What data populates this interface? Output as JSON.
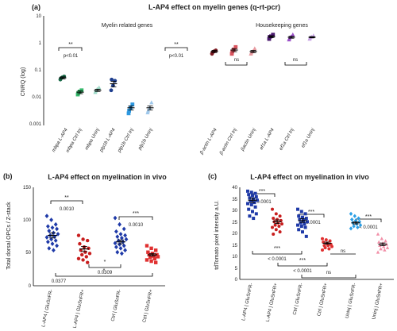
{
  "chart_data": [
    {
      "panel": "(a)",
      "type": "scatter",
      "title": "L-AP4 effect on myelin genes (q-rt-pcr)",
      "ylabel": "CNRQ (log)",
      "yscale": "log",
      "ylim": [
        0.001,
        10
      ],
      "yticks": [
        "0.001",
        "0.01",
        "0.1",
        "1",
        "10"
      ],
      "group_labels": [
        "Myelin related genes",
        "Housekeeping genes"
      ],
      "categories": [
        "mbpa L-AP4",
        "mbpa Ctrl Inj",
        "mbpa Uninj",
        "plp1b L-AP4",
        "plp1b Ctrl Inj",
        "plp1b Uninj",
        "β-actin L-AP4",
        "β-actin Ctrl Inj",
        "βactin Uninj",
        "ef1a L-AP4",
        "ef1a Ctrl Inj",
        "ef1a Uninj"
      ],
      "colors": [
        "#1b6b4a",
        "#34b86a",
        "#9dd9c6",
        "#1f3f8f",
        "#2e98e0",
        "#9ec7ea",
        "#7a1820",
        "#d9545e",
        "#e79aa0",
        "#4a1a6e",
        "#9b4fc9",
        "#c9a5e6"
      ],
      "points": [
        [
          0.05,
          0.06,
          0.065,
          0.055
        ],
        [
          0.014,
          0.018,
          0.02,
          0.016
        ],
        [
          0.017,
          0.022,
          0.025,
          0.019
        ],
        [
          0.02,
          0.03,
          0.045,
          0.05
        ],
        [
          0.0028,
          0.0045,
          0.006,
          0.0035
        ],
        [
          0.003,
          0.0045,
          0.007,
          0.0035
        ],
        [
          0.45,
          0.55,
          0.6,
          0.5
        ],
        [
          0.45,
          0.65,
          0.8,
          0.55
        ],
        [
          0.45,
          0.55,
          0.7,
          0.5
        ],
        [
          1.6,
          2.0,
          2.3,
          1.9
        ],
        [
          1.5,
          1.9,
          2.3,
          1.7
        ],
        [
          1.6,
          1.9,
          2.1,
          1.8
        ]
      ],
      "means": [
        0.058,
        0.017,
        0.02,
        0.035,
        0.0045,
        0.0045,
        0.55,
        0.62,
        0.55,
        1.95,
        1.85,
        1.85
      ],
      "sems": [
        0.005,
        0.002,
        0.002,
        0.008,
        0.0008,
        0.0008,
        0.05,
        0.08,
        0.05,
        0.15,
        0.15,
        0.1
      ],
      "annotations": [
        "**",
        "p<0.01",
        "**",
        "p<0.01",
        "ns",
        "ns"
      ]
    },
    {
      "panel": "(b)",
      "type": "scatter",
      "title": "L-AP4 effect on myelination in vivo",
      "ylabel": "Total dorsal OPCs / Z-stack",
      "ylim": [
        0,
        150
      ],
      "yticks": [
        "0",
        "50",
        "100",
        "150"
      ],
      "categories": [
        "L-AP4 | GluSnFR-",
        "L-AP4 | GluSnFR+",
        "Ctrl | GluSnFR-",
        "Ctrl | GluSnFR+"
      ],
      "colors": [
        "#1f3aa8",
        "#c81e1e",
        "#1f3aa8",
        "#e03030"
      ],
      "points": [
        [
          108,
          102,
          95,
          92,
          90,
          88,
          85,
          82,
          80,
          78,
          76,
          75,
          72,
          70,
          68,
          65,
          62,
          58,
          55
        ],
        [
          78,
          72,
          70,
          65,
          60,
          58,
          55,
          52,
          50,
          48,
          45,
          42,
          40,
          36
        ],
        [
          105,
          95,
          88,
          84,
          80,
          78,
          76,
          74,
          72,
          70,
          68,
          66,
          64,
          62,
          60,
          58,
          55,
          52,
          50
        ],
        [
          62,
          58,
          55,
          52,
          50,
          48,
          48,
          46,
          45,
          44,
          42,
          40,
          38,
          36
        ]
      ],
      "means": [
        78,
        57,
        68,
        48
      ],
      "sems": [
        4,
        4,
        3,
        2
      ],
      "annotations": [
        "**",
        "0.0010",
        "***",
        "0.0010",
        "*",
        "*",
        "0.0377",
        "0.0309"
      ]
    },
    {
      "panel": "(c)",
      "type": "scatter",
      "title": "L-AP4 effect on myelination in vivo",
      "ylabel": "tdTomato pixel intensity a.U.",
      "ylim": [
        0,
        40
      ],
      "yticks": [
        "0",
        "5",
        "10",
        "15",
        "20",
        "25",
        "30",
        "35",
        "40"
      ],
      "categories": [
        "L-AP4 | GluSnFR-",
        "L-AP4 | GluSnFR+",
        "Ctrl | GluSnFR-",
        "Ctrl | GluSnFR+",
        "Uninj | GluSnFR-",
        "Uninj | GluSnFR+"
      ],
      "colors": [
        "#1f3aa8",
        "#c81e1e",
        "#1f3aa8",
        "#e03030",
        "#2a9fe6",
        "#f28fa8"
      ],
      "points": [
        [
          39,
          38.5,
          38,
          37.5,
          37,
          36.5,
          36,
          35.5,
          35,
          34.5,
          34,
          33.5,
          33,
          32,
          31,
          30,
          29,
          28,
          27
        ],
        [
          31,
          29,
          28,
          27,
          26.5,
          26,
          25.5,
          25,
          24.5,
          24,
          23.5,
          23,
          22,
          21,
          20
        ],
        [
          31,
          30,
          29,
          28,
          27.5,
          27,
          26.5,
          26,
          25.5,
          25,
          24.5,
          24,
          23.5,
          23,
          22,
          21,
          19
        ],
        [
          18,
          17.5,
          17,
          16.5,
          16,
          15.5,
          15,
          15,
          14.5,
          14,
          13.5,
          13
        ],
        [
          29,
          28,
          27,
          26.5,
          26,
          25.5,
          25,
          24.5,
          24,
          23.5,
          23,
          22.5
        ],
        [
          20,
          18,
          17,
          16.5,
          16,
          15.5,
          15,
          14.5,
          14,
          13.5,
          13,
          12
        ]
      ],
      "means": [
        35,
        25.5,
        26,
        16,
        25,
        15.5
      ],
      "sems": [
        1,
        0.8,
        0.8,
        0.5,
        0.5,
        0.6
      ],
      "annotations": [
        "***",
        "< 0.0001",
        "***",
        "< 0.0001",
        "***",
        "< 0.0001",
        "***",
        "< 0.0001",
        "***",
        "< 0.0001",
        "ns",
        "ns"
      ]
    }
  ]
}
